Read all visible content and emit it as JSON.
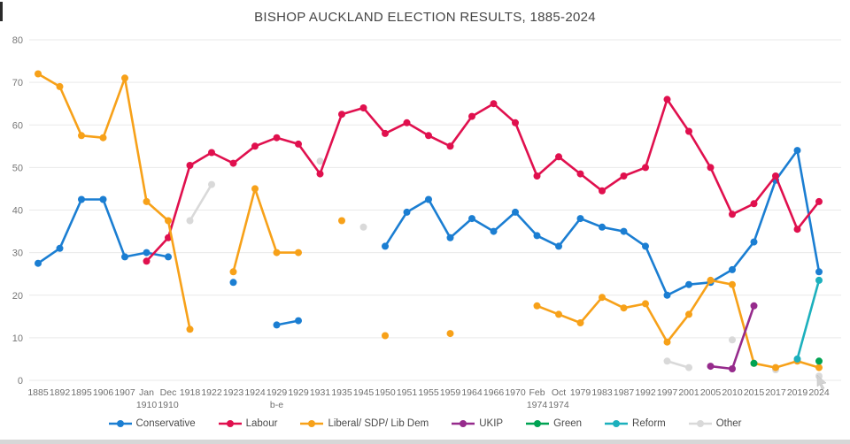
{
  "chart_data": {
    "type": "line",
    "title": "BISHOP AUCKLAND ELECTION RESULTS, 1885-2024",
    "xlabel": "",
    "ylabel": "",
    "ylim": [
      0,
      80
    ],
    "y_ticks": [
      0,
      10,
      20,
      30,
      40,
      50,
      60,
      70,
      80
    ],
    "grid": true,
    "legend_position": "bottom",
    "categories": [
      "1885",
      "1892",
      "1895",
      "1906",
      "1907",
      "Jan 1910",
      "Dec 1910",
      "1918",
      "1922",
      "1923",
      "1924",
      "1929 b-e",
      "1929",
      "1931",
      "1935",
      "1945",
      "1950",
      "1951",
      "1955",
      "1959",
      "1964",
      "1966",
      "1970",
      "Feb 1974",
      "Oct 1974",
      "1979",
      "1983",
      "1987",
      "1992",
      "1997",
      "2001",
      "2005",
      "2010",
      "2015",
      "2017",
      "2019",
      "2024"
    ],
    "series": [
      {
        "name": "Conservative",
        "color": "#1b7ed2",
        "values": [
          27.5,
          31,
          42.5,
          42.5,
          29,
          30,
          29,
          null,
          null,
          23,
          null,
          13,
          14,
          null,
          null,
          null,
          31.5,
          39.5,
          42.5,
          33.5,
          38,
          35,
          39.5,
          34,
          31.5,
          38,
          36,
          35,
          31.5,
          20,
          22.5,
          23,
          26,
          32.5,
          47,
          54,
          25.5
        ]
      },
      {
        "name": "Labour",
        "color": "#e0104e",
        "values": [
          null,
          null,
          null,
          null,
          null,
          28,
          33.5,
          50.5,
          53.5,
          51,
          55,
          57,
          55.5,
          48.5,
          62.5,
          64,
          58,
          60.5,
          57.5,
          55,
          62,
          65,
          60.5,
          48,
          52.5,
          48.5,
          44.5,
          48,
          50,
          66,
          58.5,
          50,
          39,
          41.5,
          48,
          35.5,
          42
        ]
      },
      {
        "name": "Liberal/ SDP/ Lib Dem",
        "color": "#f7a119",
        "values": [
          72,
          69,
          57.5,
          57,
          71,
          42,
          37.5,
          12,
          null,
          25.5,
          45,
          30,
          30,
          null,
          37.5,
          null,
          10.5,
          null,
          null,
          11,
          null,
          null,
          null,
          17.5,
          15.5,
          13.5,
          19.5,
          17,
          18,
          9,
          15.5,
          23.5,
          22.5,
          4,
          3,
          4.5,
          3
        ]
      },
      {
        "name": "UKIP",
        "color": "#962b8c",
        "values": [
          null,
          null,
          null,
          null,
          null,
          null,
          null,
          null,
          null,
          null,
          null,
          null,
          null,
          null,
          null,
          null,
          null,
          null,
          null,
          null,
          null,
          null,
          null,
          null,
          null,
          null,
          null,
          null,
          null,
          null,
          null,
          3.3,
          2.7,
          17.5,
          null,
          null,
          null
        ]
      },
      {
        "name": "Green",
        "color": "#00a353",
        "values": [
          null,
          null,
          null,
          null,
          null,
          null,
          null,
          null,
          null,
          null,
          null,
          null,
          null,
          null,
          null,
          null,
          null,
          null,
          null,
          null,
          null,
          null,
          null,
          null,
          null,
          null,
          null,
          null,
          null,
          null,
          null,
          null,
          null,
          4,
          null,
          null,
          4.5
        ]
      },
      {
        "name": "Reform",
        "color": "#1cb0bd",
        "values": [
          null,
          null,
          null,
          null,
          null,
          null,
          null,
          null,
          null,
          null,
          null,
          null,
          null,
          null,
          null,
          null,
          null,
          null,
          null,
          null,
          null,
          null,
          null,
          null,
          null,
          null,
          null,
          null,
          null,
          null,
          null,
          null,
          null,
          null,
          null,
          5,
          23.5
        ]
      },
      {
        "name": "Other",
        "color": "#d9d9d9",
        "values": [
          null,
          null,
          null,
          null,
          null,
          null,
          null,
          37.5,
          46,
          null,
          null,
          null,
          null,
          51.5,
          null,
          36,
          null,
          null,
          null,
          null,
          null,
          null,
          null,
          null,
          null,
          null,
          null,
          null,
          null,
          4.5,
          3,
          null,
          9.5,
          null,
          2.5,
          null,
          1
        ]
      }
    ]
  }
}
